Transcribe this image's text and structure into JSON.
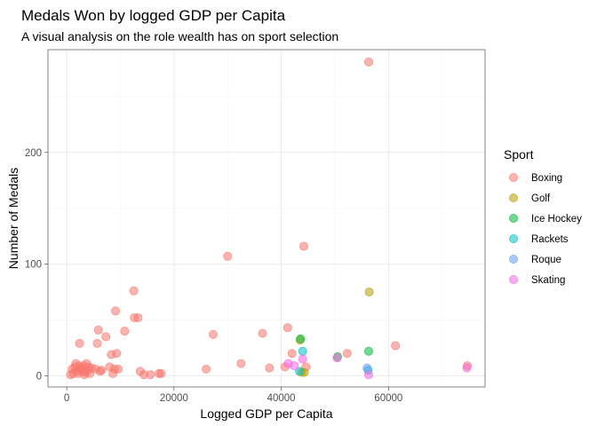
{
  "chart_data": {
    "type": "scatter",
    "title": "Medals Won by logged GDP per Capita",
    "subtitle": "A visual analysis on the role wealth has on sport selection",
    "xlabel": "Logged GDP per Capita",
    "ylabel": "Number of Medals",
    "xlim": [
      -3500,
      78000
    ],
    "ylim": [
      -10,
      292
    ],
    "x_ticks": [
      0,
      20000,
      40000,
      60000
    ],
    "x_tick_labels": [
      "0",
      "20000",
      "40000",
      "60000"
    ],
    "y_ticks": [
      0,
      100,
      200
    ],
    "y_tick_labels": [
      "0",
      "100",
      "200"
    ],
    "grid": true,
    "legend": {
      "title": "Sport",
      "placement": "right"
    },
    "series": [
      {
        "name": "Boxing",
        "color": "#F8766D",
        "points": [
          [
            700,
            1
          ],
          [
            1000,
            6
          ],
          [
            1200,
            2
          ],
          [
            1500,
            8
          ],
          [
            1700,
            11
          ],
          [
            1900,
            4
          ],
          [
            2100,
            2
          ],
          [
            2300,
            9
          ],
          [
            2400,
            29
          ],
          [
            2600,
            6
          ],
          [
            2800,
            7
          ],
          [
            3000,
            4
          ],
          [
            3100,
            9
          ],
          [
            3300,
            1
          ],
          [
            3500,
            3
          ],
          [
            3700,
            11
          ],
          [
            3900,
            5
          ],
          [
            4100,
            8
          ],
          [
            4300,
            2
          ],
          [
            4600,
            7
          ],
          [
            5400,
            6
          ],
          [
            5700,
            29
          ],
          [
            5900,
            41
          ],
          [
            6200,
            4
          ],
          [
            6500,
            5
          ],
          [
            7300,
            35
          ],
          [
            8000,
            8
          ],
          [
            8300,
            19
          ],
          [
            8600,
            2
          ],
          [
            8900,
            6
          ],
          [
            9100,
            58
          ],
          [
            9300,
            20
          ],
          [
            9600,
            6
          ],
          [
            10800,
            40
          ],
          [
            12500,
            76
          ],
          [
            12600,
            52
          ],
          [
            13300,
            52
          ],
          [
            13700,
            4
          ],
          [
            14400,
            1
          ],
          [
            15600,
            1
          ],
          [
            17200,
            2
          ],
          [
            17600,
            2
          ],
          [
            26000,
            6
          ],
          [
            27300,
            37
          ],
          [
            30000,
            107
          ],
          [
            32500,
            11
          ],
          [
            36500,
            38
          ],
          [
            37800,
            7
          ],
          [
            40700,
            8
          ],
          [
            41200,
            43
          ],
          [
            42000,
            20
          ],
          [
            44200,
            116
          ],
          [
            44600,
            8
          ],
          [
            52300,
            20
          ],
          [
            56300,
            281
          ],
          [
            61300,
            27
          ],
          [
            74700,
            9
          ]
        ]
      },
      {
        "name": "Golf",
        "color": "#B79F00",
        "points": [
          [
            43500,
            32
          ],
          [
            43800,
            3
          ],
          [
            44300,
            3
          ],
          [
            56400,
            75
          ]
        ]
      },
      {
        "name": "Ice Hockey",
        "color": "#00BA38",
        "points": [
          [
            43600,
            33
          ],
          [
            50500,
            17
          ],
          [
            56300,
            22
          ]
        ]
      },
      {
        "name": "Rackets",
        "color": "#00BFC4",
        "points": [
          [
            43400,
            4
          ],
          [
            44000,
            22
          ],
          [
            56200,
            5
          ]
        ]
      },
      {
        "name": "Roque",
        "color": "#619CFF",
        "points": [
          [
            56000,
            7
          ]
        ]
      },
      {
        "name": "Skating",
        "color": "#F564E3",
        "points": [
          [
            41300,
            11
          ],
          [
            42400,
            9
          ],
          [
            44000,
            15
          ],
          [
            50400,
            16
          ],
          [
            56300,
            1
          ],
          [
            74600,
            7
          ]
        ]
      }
    ]
  }
}
